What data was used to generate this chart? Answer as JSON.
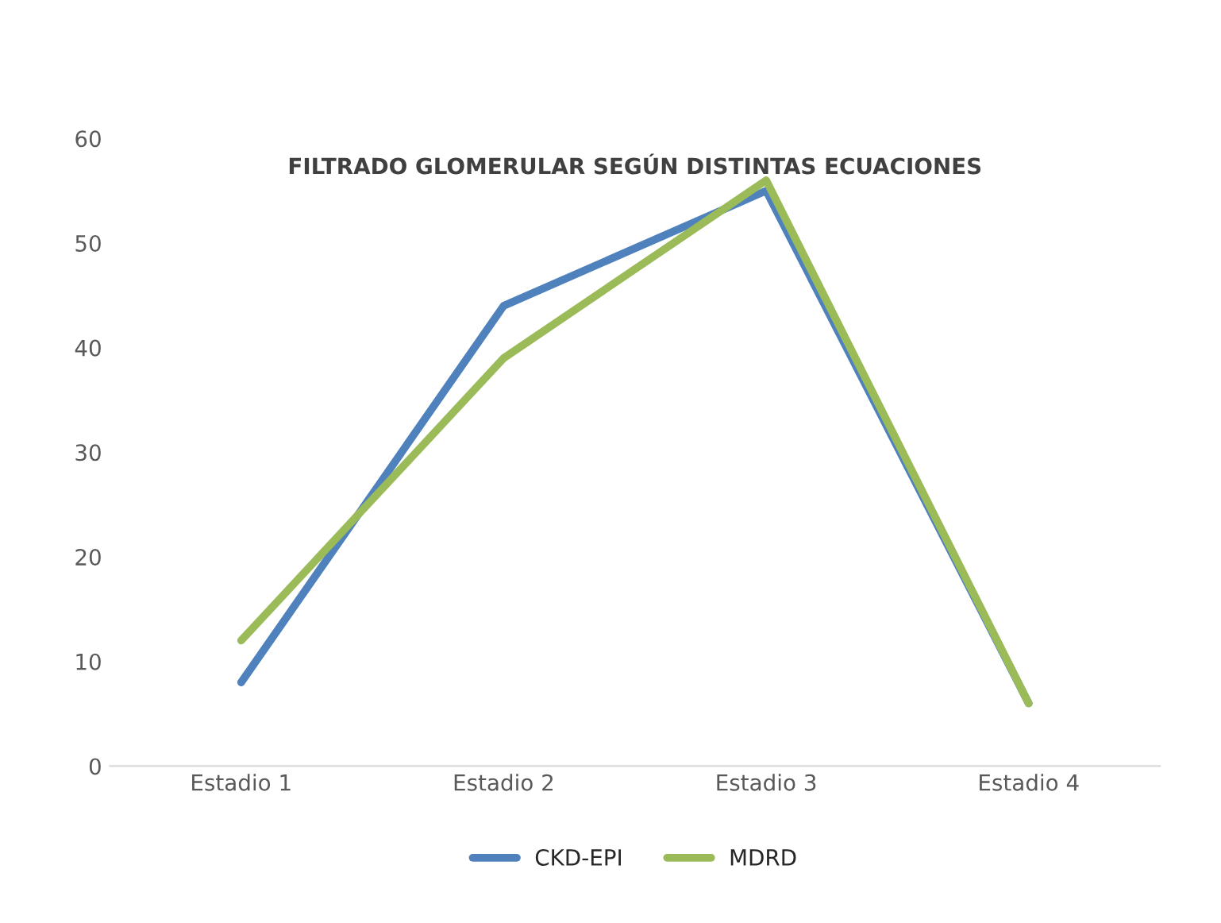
{
  "chart_data": {
    "type": "line",
    "title": "FILTRADO GLOMERULAR SEGÚN DISTINTAS ECUACIONES",
    "categories": [
      "Estadio 1",
      "Estadio 2",
      "Estadio 3",
      "Estadio 4"
    ],
    "series": [
      {
        "name": "CKD-EPI",
        "color": "#4f81bd",
        "values": [
          8,
          44,
          55,
          6
        ]
      },
      {
        "name": "MDRD",
        "color": "#9bbb59",
        "values": [
          12,
          39,
          56,
          6
        ]
      }
    ],
    "ylim": [
      0,
      60
    ],
    "yticks": [
      0,
      10,
      20,
      30,
      40,
      50,
      60
    ],
    "grid": false,
    "legend": "bottom",
    "marker": "none",
    "line_style": "solid"
  }
}
